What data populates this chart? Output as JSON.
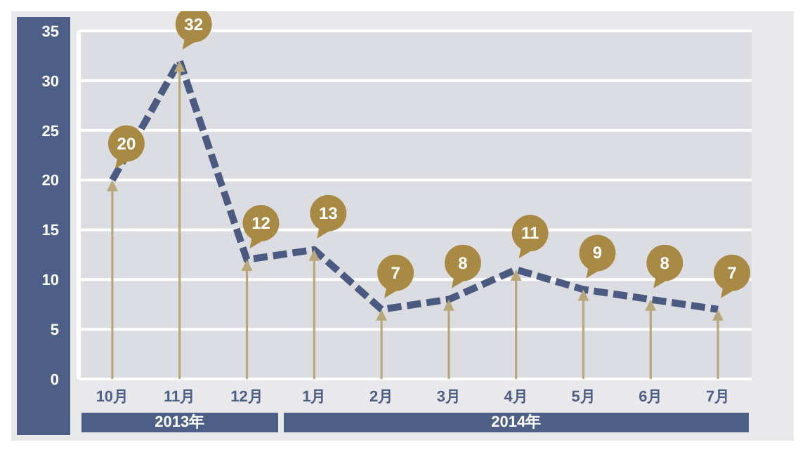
{
  "chart_data": {
    "type": "line",
    "categories": [
      "10月",
      "11月",
      "12月",
      "1月",
      "2月",
      "3月",
      "4月",
      "5月",
      "6月",
      "7月"
    ],
    "series": [
      {
        "color": "#4a5a80",
        "values": [
          20,
          32,
          12,
          13,
          7,
          8,
          11,
          9,
          8,
          7
        ]
      }
    ],
    "ylim": [
      0,
      35
    ],
    "yticks": [
      0,
      5,
      10,
      15,
      20,
      25,
      30,
      35
    ],
    "grid": "y",
    "line_style": "dashed",
    "data_labels": true,
    "annotations": [
      "2013年",
      "2014年"
    ]
  }
}
